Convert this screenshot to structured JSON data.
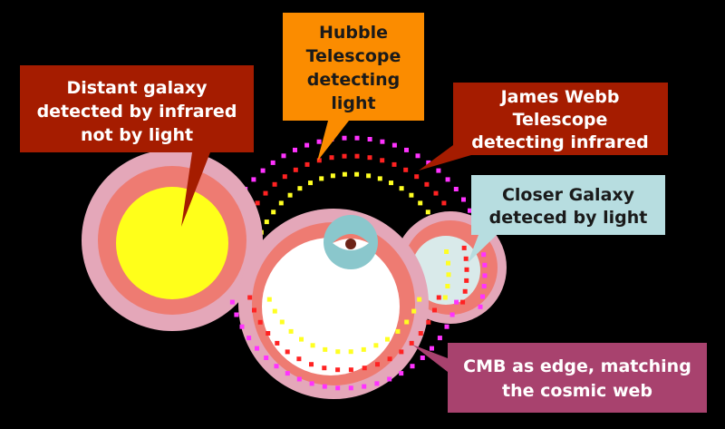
{
  "diagram": {
    "callouts": [
      {
        "id": "distant-galaxy",
        "lines": [
          "Distant galaxy",
          "detected by infrared",
          "not by light"
        ],
        "color": "#a51c00",
        "text_color": "#ffffff"
      },
      {
        "id": "hubble",
        "lines": [
          "Hubble",
          "Telescope",
          "detecting",
          "light"
        ],
        "color": "#fb8c00",
        "text_color": "#1a1a1a"
      },
      {
        "id": "james-webb",
        "lines": [
          "James Webb",
          "Telescope",
          "detecting infrared"
        ],
        "color": "#a51c00",
        "text_color": "#ffffff"
      },
      {
        "id": "closer-galaxy",
        "lines": [
          "Closer Galaxy",
          "deteced by light"
        ],
        "color": "#b7dde0",
        "text_color": "#1a1a1a"
      },
      {
        "id": "cmb",
        "lines": [
          "CMB as edge, matching",
          "the cosmic web"
        ],
        "color": "#a8426e",
        "text_color": "#ffffff"
      }
    ],
    "colors": {
      "background": "#000000",
      "pink_ring": "#e4a7b9",
      "salmon_ring": "#ee7b72",
      "galaxy_core": "#ffff1a",
      "white_core": "#ffffff",
      "closer_core": "#d9eaea",
      "eye_outer": "#8ac7cc",
      "eye_white": "#ffffff",
      "eye_lid": "#f07b6e",
      "eye_pupil": "#6b2418",
      "dots_magenta": "#ff33ff",
      "dots_red": "#ff2222",
      "dots_yellow": "#ffff22"
    }
  }
}
